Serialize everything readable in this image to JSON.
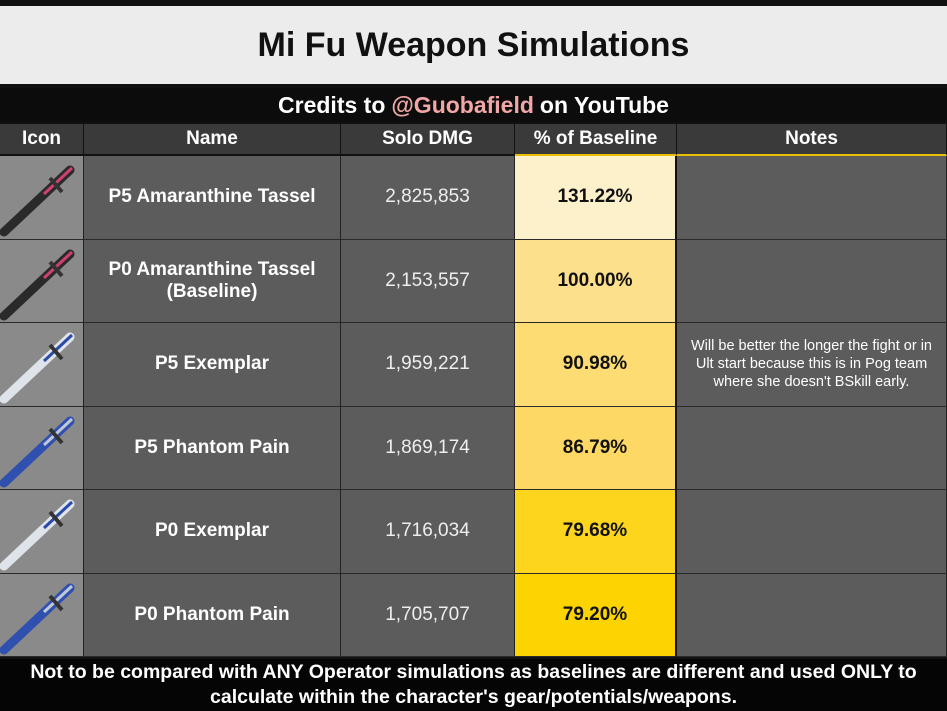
{
  "header": {
    "title": "Mi Fu Weapon Simulations",
    "credits": {
      "before": "Credits to",
      "handle": "@Guobafield",
      "after": "on YouTube"
    }
  },
  "table": {
    "columns": [
      "Icon",
      "Name",
      "Solo DMG",
      "% of Baseline",
      "Notes"
    ],
    "rows": [
      {
        "name": "P5 Amaranthine Tassel",
        "solo_dmg": "2,825,853",
        "percent": "131.22%"
      },
      {
        "name": "P0 Amaranthine Tassel (Baseline)",
        "solo_dmg": "2,153,557",
        "percent": "100.00%"
      },
      {
        "name": "P5 Exemplar",
        "solo_dmg": "1,959,221",
        "percent": "90.98%",
        "note": "Will be better the longer the fight or in Ult start because this is in Pog team where she doesn't BSkill early."
      },
      {
        "name": "P5 Phantom Pain",
        "solo_dmg": "1,869,174",
        "percent": "86.79%"
      },
      {
        "name": "P0 Exemplar",
        "solo_dmg": "1,716,034",
        "percent": "79.68%"
      },
      {
        "name": "P0 Phantom Pain",
        "solo_dmg": "1,705,707",
        "percent": "79.20%"
      }
    ]
  },
  "footer": "Not to be compared with ANY Operator simulations as baselines are different and used ONLY to calculate within the character's gear/potentials/weapons."
}
